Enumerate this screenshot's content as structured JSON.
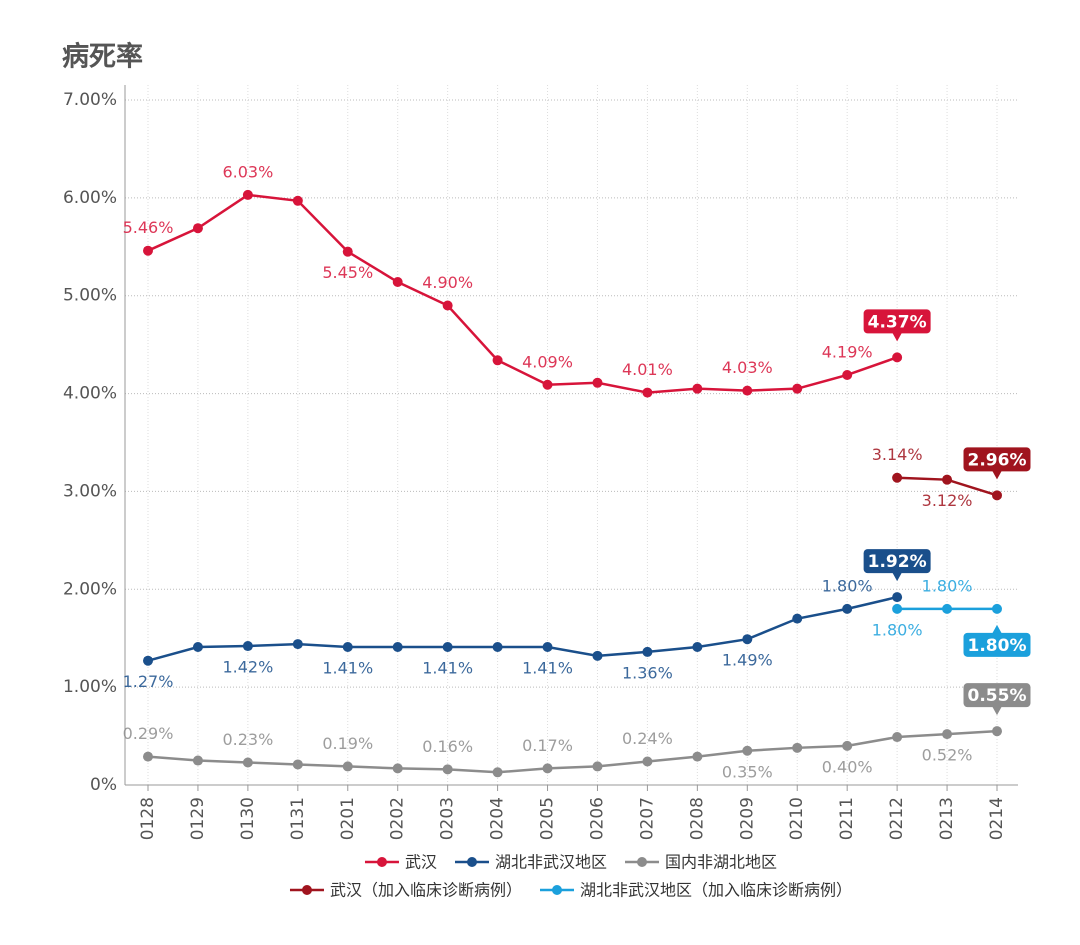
{
  "chart_data": {
    "type": "line",
    "title": "病死率",
    "categories": [
      "0128",
      "0129",
      "0130",
      "0131",
      "0201",
      "0202",
      "0203",
      "0204",
      "0205",
      "0206",
      "0207",
      "0208",
      "0209",
      "0210",
      "0211",
      "0212",
      "0213",
      "0214"
    ],
    "ylim": [
      0,
      7
    ],
    "yticks": [
      {
        "value": 0,
        "label": "0%"
      },
      {
        "value": 1,
        "label": "1.00%"
      },
      {
        "value": 2,
        "label": "2.00%"
      },
      {
        "value": 3,
        "label": "3.00%"
      },
      {
        "value": 4,
        "label": "4.00%"
      },
      {
        "value": 5,
        "label": "5.00%"
      },
      {
        "value": 6,
        "label": "6.00%"
      },
      {
        "value": 7,
        "label": "7.00%"
      }
    ],
    "grid": true,
    "series": [
      {
        "name": "武汉",
        "color": "#d7143a",
        "values": [
          5.46,
          5.69,
          6.03,
          5.97,
          5.45,
          5.14,
          4.9,
          4.34,
          4.09,
          4.11,
          4.01,
          4.05,
          4.03,
          4.05,
          4.19,
          4.37,
          null,
          null
        ],
        "value_labels": [
          "5.46%",
          null,
          "6.03%",
          null,
          "5.45%",
          null,
          "4.90%",
          null,
          "4.09%",
          null,
          "4.01%",
          null,
          "4.03%",
          null,
          "4.19%",
          "4.37%",
          null,
          null
        ]
      },
      {
        "name": "湖北非武汉地区",
        "color": "#1a4f8b",
        "values": [
          1.27,
          1.41,
          1.42,
          1.44,
          1.41,
          1.41,
          1.41,
          1.41,
          1.41,
          1.32,
          1.36,
          1.41,
          1.49,
          1.7,
          1.8,
          1.92,
          null,
          null
        ],
        "value_labels": [
          "1.27%",
          null,
          "1.42%",
          null,
          "1.41%",
          null,
          "1.41%",
          null,
          "1.41%",
          null,
          "1.36%",
          null,
          "1.49%",
          null,
          "1.80%",
          "1.92%",
          null,
          null
        ]
      },
      {
        "name": "国内非湖北地区",
        "color": "#8c8c8c",
        "values": [
          0.29,
          0.25,
          0.23,
          0.21,
          0.19,
          0.17,
          0.16,
          0.13,
          0.17,
          0.19,
          0.24,
          0.29,
          0.35,
          0.38,
          0.4,
          0.49,
          0.52,
          0.55
        ],
        "value_labels": [
          "0.29%",
          null,
          "0.23%",
          null,
          "0.19%",
          null,
          "0.16%",
          null,
          "0.17%",
          null,
          "0.24%",
          null,
          "0.35%",
          null,
          "0.40%",
          null,
          "0.52%",
          "0.55%"
        ]
      },
      {
        "name": "武汉（加入临床诊断病例）",
        "color": "#a0141e",
        "values": [
          null,
          null,
          null,
          null,
          null,
          null,
          null,
          null,
          null,
          null,
          null,
          null,
          null,
          null,
          null,
          3.14,
          3.12,
          2.96
        ],
        "value_labels": [
          null,
          null,
          null,
          null,
          null,
          null,
          null,
          null,
          null,
          null,
          null,
          null,
          null,
          null,
          null,
          "3.14%",
          "3.12%",
          "2.96%"
        ]
      },
      {
        "name": "湖北非武汉地区（加入临床诊断病例）",
        "color": "#1ba0dc",
        "values": [
          null,
          null,
          null,
          null,
          null,
          null,
          null,
          null,
          null,
          null,
          null,
          null,
          null,
          null,
          null,
          1.8,
          1.8,
          1.8
        ],
        "value_labels": [
          null,
          null,
          null,
          null,
          null,
          null,
          null,
          null,
          null,
          null,
          null,
          null,
          null,
          null,
          null,
          "1.80%",
          "1.80%",
          "1.80%"
        ]
      }
    ]
  }
}
